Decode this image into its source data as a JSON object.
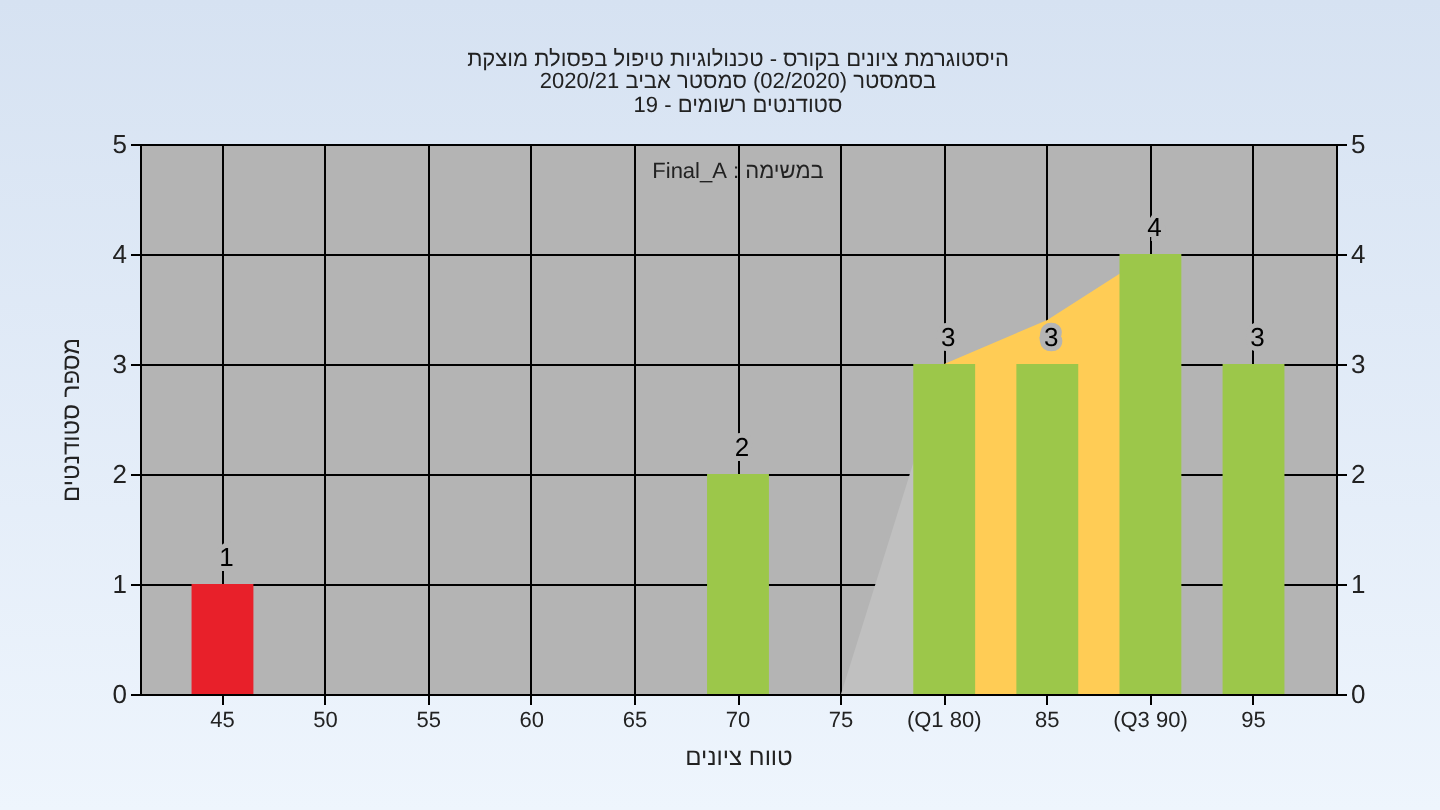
{
  "chart_data": {
    "type": "bar",
    "title": "היסטוגרמת ציונים בקורס - טכנולוגיות טיפול בפסולת מוצקת",
    "subtitle": "בסמסטר  (02/2020)  סמסטר אביב 2020/21\nסטודנטים רשומים - 19",
    "xlabel": "טווח ציונים",
    "ylabel": "מספר סטודנטים",
    "annotations": [
      "במשימה : Final_A"
    ],
    "categories": [
      "45",
      "50",
      "55",
      "60",
      "65",
      "70",
      "75",
      "(Q1 80)",
      "85",
      "(Q3 90)",
      "95"
    ],
    "series": [
      {
        "type": "area",
        "color": "#c0c0c0",
        "values": [
          null,
          null,
          null,
          null,
          null,
          null,
          0,
          3,
          null,
          null,
          null
        ]
      },
      {
        "type": "area",
        "color": "#ffcc55",
        "values": [
          null,
          null,
          null,
          null,
          null,
          null,
          null,
          3,
          3.4,
          4,
          null
        ]
      },
      {
        "colors": [
          "#e8202a",
          "#9cc74a",
          "#9cc74a",
          "#9cc74a",
          "#9cc74a",
          "#9cc74a",
          "#9cc74a",
          "#9cc74a",
          "#9cc74a",
          "#9cc74a",
          "#9cc74a"
        ],
        "values": [
          1,
          0,
          0,
          0,
          0,
          2,
          0,
          3,
          3,
          4,
          3
        ],
        "value_labels": [
          "1",
          null,
          null,
          null,
          null,
          "2",
          null,
          "3",
          "3",
          "4",
          "3"
        ]
      }
    ],
    "ylim": [
      0,
      5
    ],
    "yticks": [
      0,
      1,
      2,
      3,
      4,
      5
    ],
    "y2lim": [
      0,
      5
    ],
    "y2ticks": [
      0,
      1,
      2,
      3,
      4,
      5
    ],
    "grid": true
  }
}
